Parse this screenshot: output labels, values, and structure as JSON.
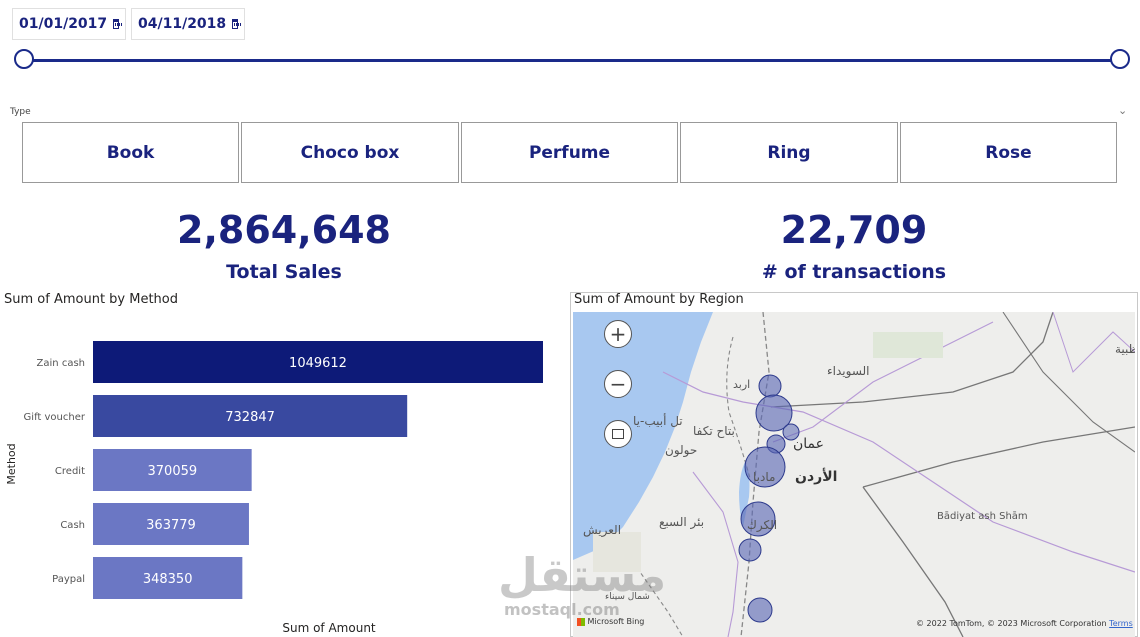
{
  "date_range": {
    "start": "01/01/2017",
    "end": "04/11/2018",
    "slider_start_fraction": 0,
    "slider_end_fraction": 1
  },
  "type_slicer": {
    "label": "Type",
    "options": [
      "Book",
      "Choco box",
      "Perfume",
      "Ring",
      "Rose"
    ]
  },
  "kpis": {
    "total_sales": {
      "value": "2,864,648",
      "label": "Total Sales"
    },
    "transactions": {
      "value": "22,709",
      "label": "# of transactions"
    }
  },
  "colors": {
    "accent": "#1a237e",
    "bar_dark": "#0d1a78",
    "bar_mid": "#3949a0",
    "bar_light": "#6b77c4",
    "water": "#a8c8f0",
    "land": "#eeeeec"
  },
  "chart_data": {
    "type": "bar",
    "orientation": "horizontal",
    "title": "Sum of Amount by Method",
    "xlabel": "Sum of Amount",
    "ylabel": "Method",
    "categories": [
      "Zain cash",
      "Gift voucher",
      "Credit",
      "Cash",
      "Paypal"
    ],
    "values": [
      1049612,
      732847,
      370059,
      363779,
      348350
    ],
    "data_labels": [
      "1049612",
      "732847",
      "370059",
      "363779",
      "348350"
    ],
    "xlim": [
      0,
      1049612
    ],
    "grid": false
  },
  "map": {
    "title": "Sum of Amount by Region",
    "zoom_in_icon": "plus-icon",
    "zoom_out_icon": "minus-icon",
    "select_icon": "lasso-select-icon",
    "place_labels": {
      "suwayda": "السويداء",
      "tel_aviv": "تل أبيب-يا",
      "petah_tikva": "بتاح تكفا",
      "holon": "حولون",
      "amman": "عمان",
      "jordan": "الأردن",
      "madaba": "مادبا",
      "karak": "الكرك",
      "beersheba": "بئر السبع",
      "arish": "العريش",
      "badiyat": "Bādiyat ash Shām",
      "sinai": "شمال سيناء",
      "edge": "ظبية",
      "irbid": "اربد"
    },
    "bing_label": "Microsoft Bing",
    "attribution": "© 2022 TomTom, © 2023 Microsoft Corporation",
    "terms": "Terms"
  },
  "watermark": {
    "arabic": "مستقل",
    "latin": "mostaql.com"
  }
}
